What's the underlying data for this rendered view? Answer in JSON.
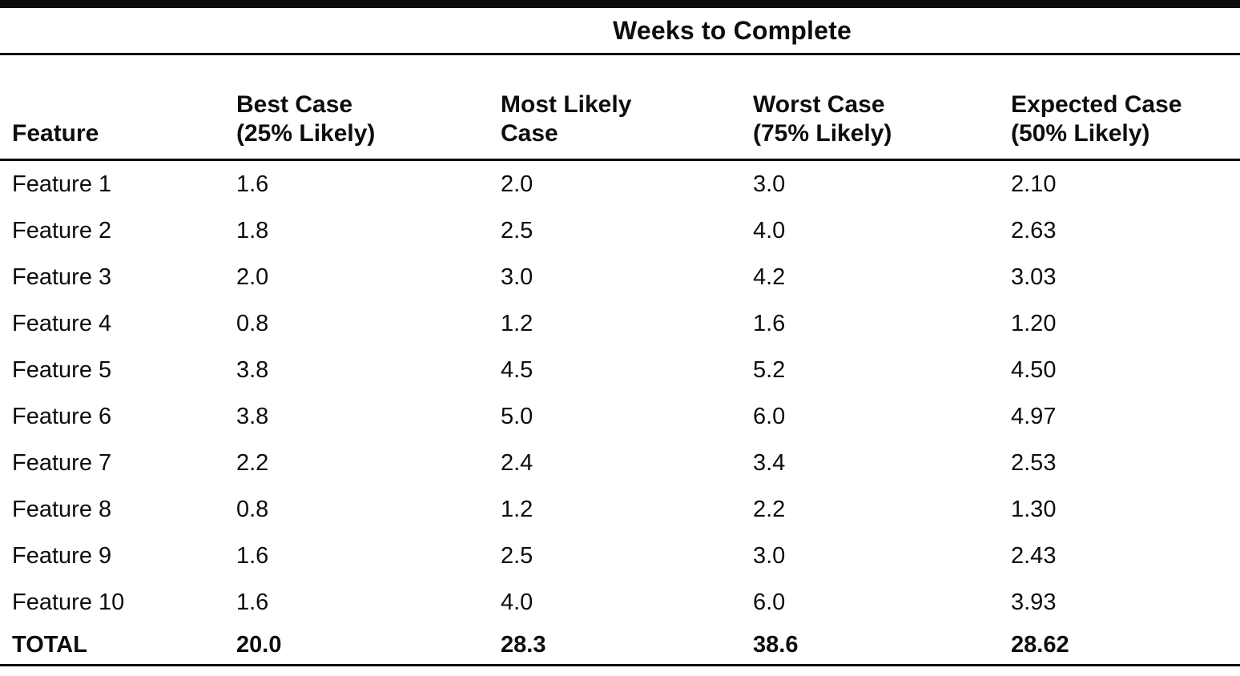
{
  "page": {
    "background": "#ffffff",
    "text_color": "#0d0d0d",
    "rule_color": "#0d0d0d"
  },
  "table": {
    "title": "Weeks to Complete",
    "columns": [
      {
        "line1": "Feature",
        "line2": ""
      },
      {
        "line1": "Best Case",
        "line2": "(25% Likely)"
      },
      {
        "line1": "Most Likely",
        "line2": "Case"
      },
      {
        "line1": "Worst Case",
        "line2": "(75% Likely)"
      },
      {
        "line1": "Expected Case",
        "line2": "(50% Likely)"
      }
    ],
    "rows": [
      {
        "feature": "Feature 1",
        "values": [
          "1.6",
          "2.0",
          "3.0",
          "2.10"
        ],
        "is_total": false
      },
      {
        "feature": "Feature 2",
        "values": [
          "1.8",
          "2.5",
          "4.0",
          "2.63"
        ],
        "is_total": false
      },
      {
        "feature": "Feature 3",
        "values": [
          "2.0",
          "3.0",
          "4.2",
          "3.03"
        ],
        "is_total": false
      },
      {
        "feature": "Feature 4",
        "values": [
          "0.8",
          "1.2",
          "1.6",
          "1.20"
        ],
        "is_total": false
      },
      {
        "feature": "Feature 5",
        "values": [
          "3.8",
          "4.5",
          "5.2",
          "4.50"
        ],
        "is_total": false
      },
      {
        "feature": "Feature 6",
        "values": [
          "3.8",
          "5.0",
          "6.0",
          "4.97"
        ],
        "is_total": false
      },
      {
        "feature": "Feature 7",
        "values": [
          "2.2",
          "2.4",
          "3.4",
          "2.53"
        ],
        "is_total": false
      },
      {
        "feature": "Feature 8",
        "values": [
          "0.8",
          "1.2",
          "2.2",
          "1.30"
        ],
        "is_total": false
      },
      {
        "feature": "Feature 9",
        "values": [
          "1.6",
          "2.5",
          "3.0",
          "2.43"
        ],
        "is_total": false
      },
      {
        "feature": "Feature 10",
        "values": [
          "1.6",
          "4.0",
          "6.0",
          "3.93"
        ],
        "is_total": false
      },
      {
        "feature": "TOTAL",
        "values": [
          "20.0",
          "28.3",
          "38.6",
          "28.62"
        ],
        "is_total": true
      }
    ]
  }
}
